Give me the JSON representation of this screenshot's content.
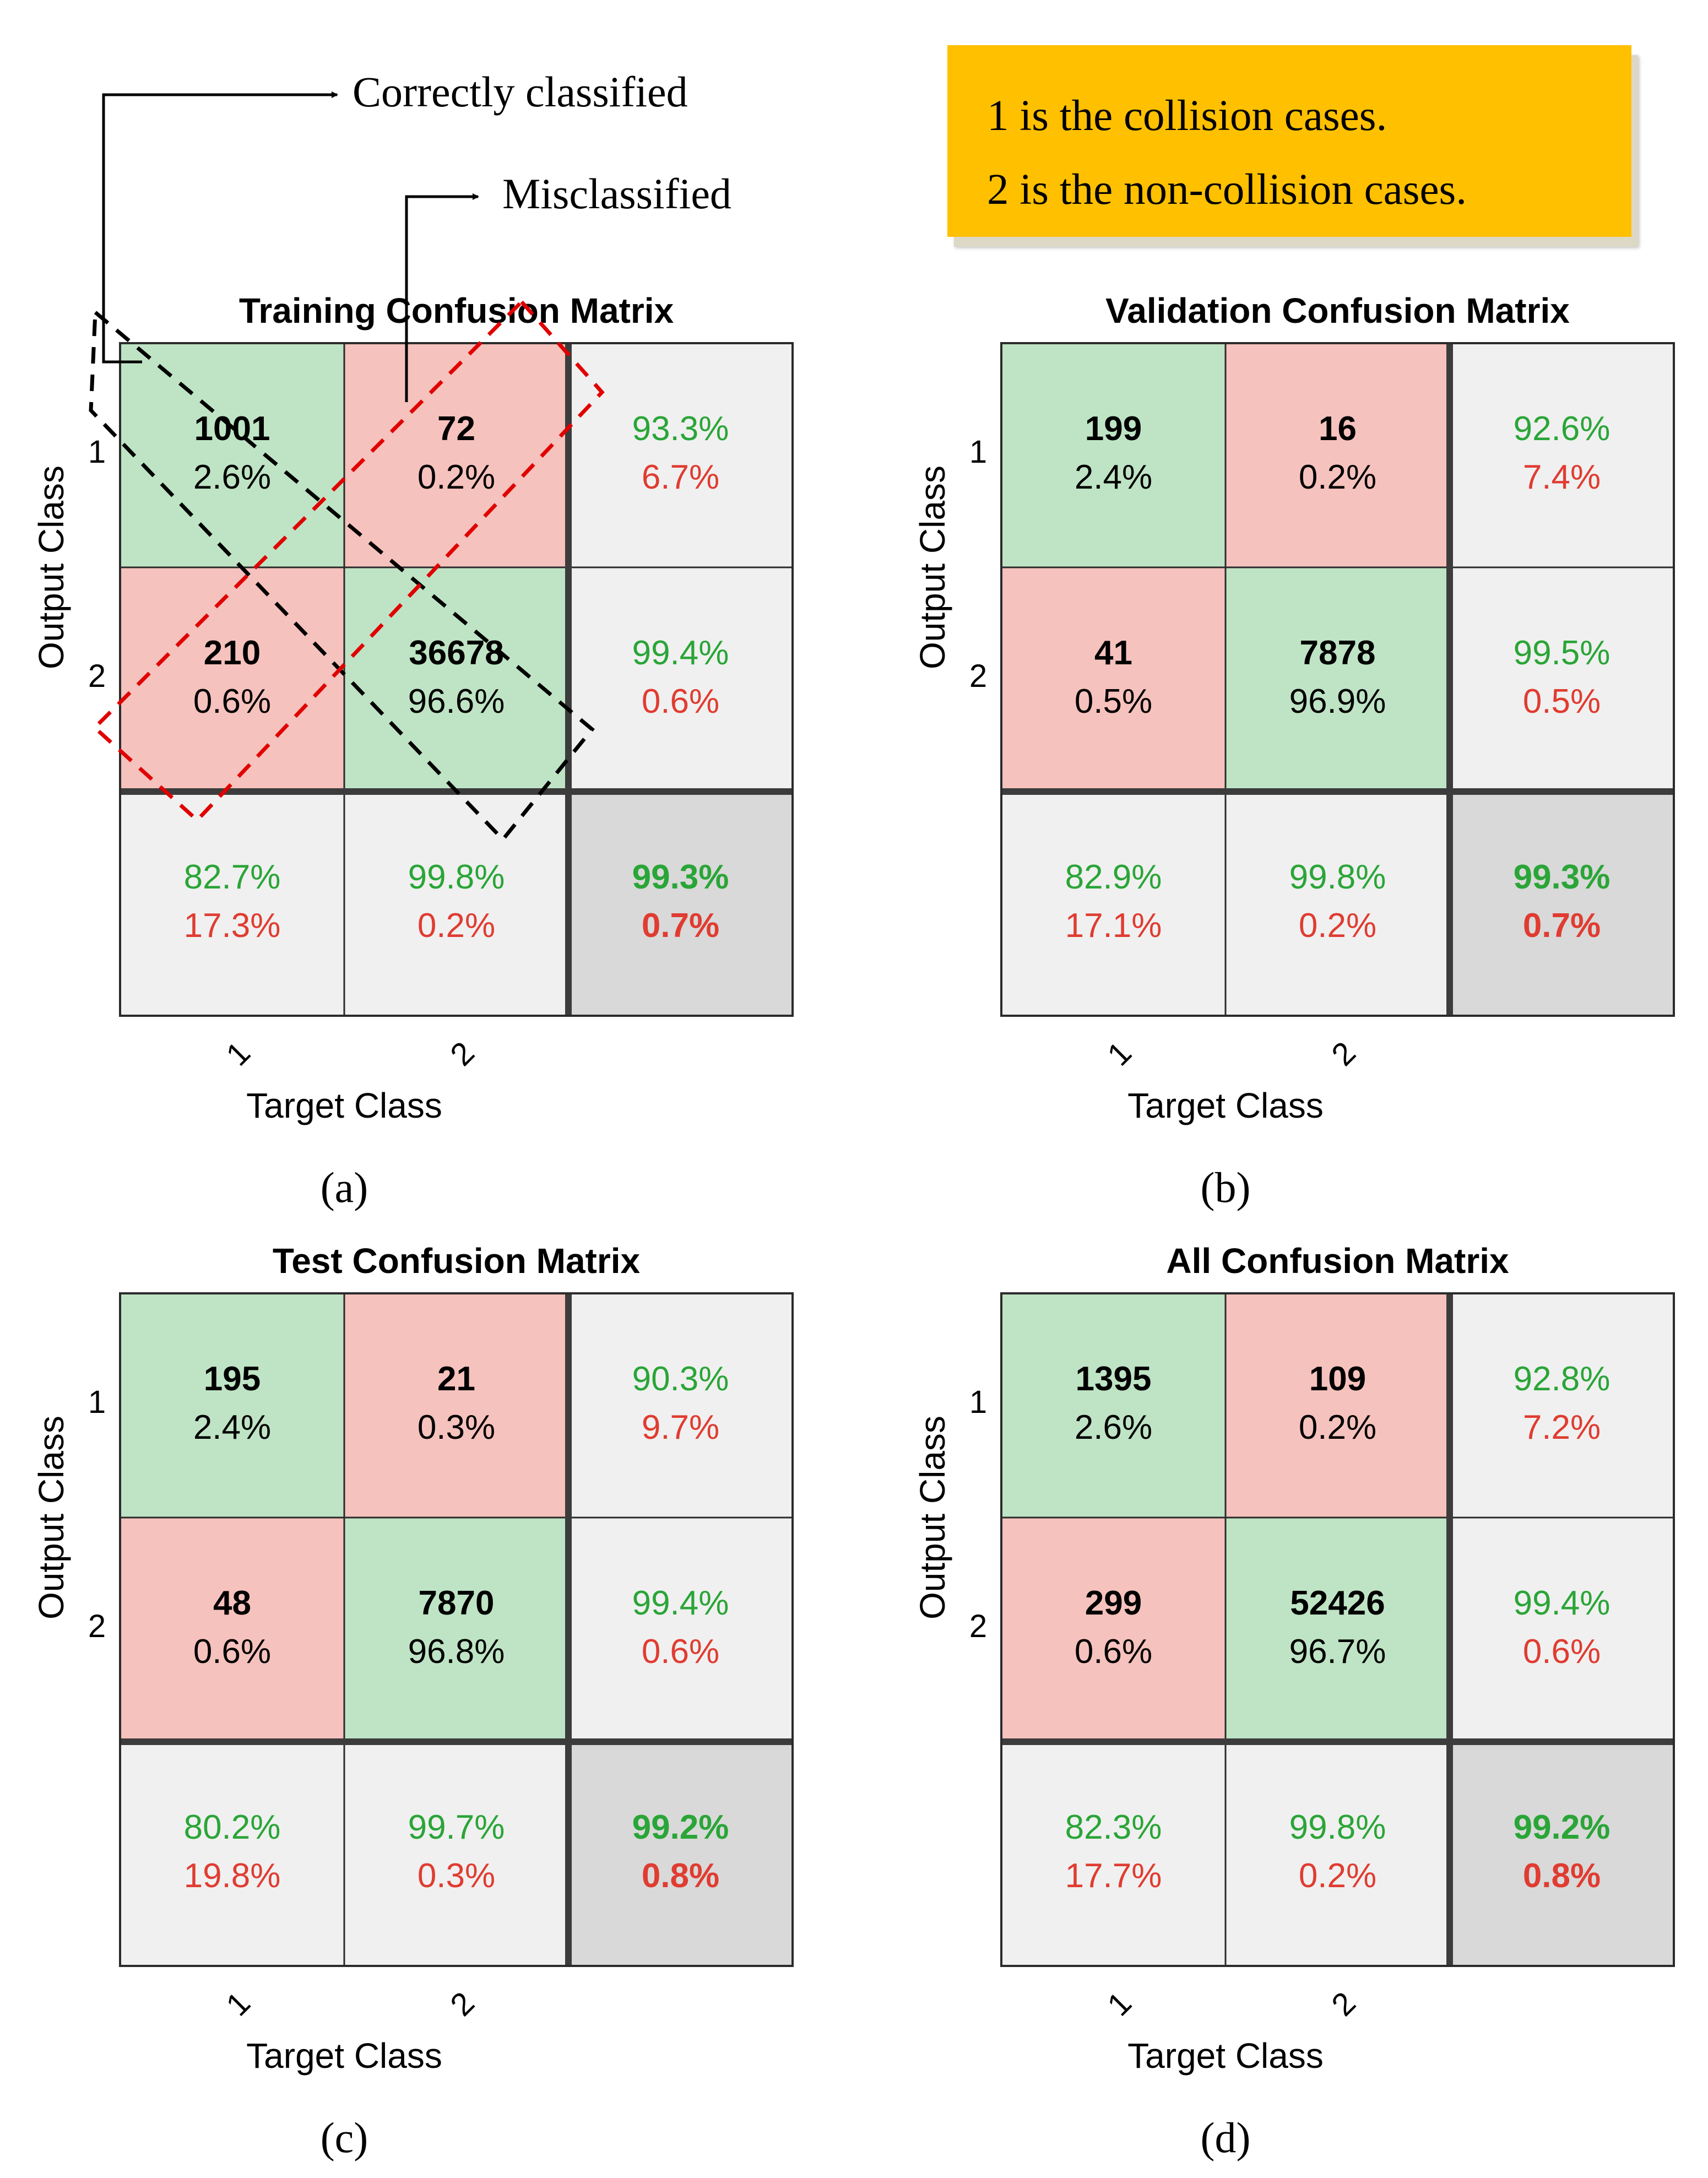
{
  "annotations": {
    "correct_label": "Correctly classified",
    "misclassified_label": "Misclassified",
    "note_lines": [
      "1 is the collision cases.",
      "2 is the non-collision cases."
    ]
  },
  "colors": {
    "correct_cell": "#bfe4c5",
    "wrong_cell": "#f6c2bd",
    "summary_cell": "#f0f0f0",
    "overall_cell": "#d9d9d9",
    "green_text": "#2aa537",
    "red_text": "#e03c31",
    "note_bg": "#ffc000",
    "correct_box": "#000000",
    "misclassified_box": "#e00000"
  },
  "chart_data": [
    {
      "type": "table",
      "panel_label": "(a)",
      "title": "Training Confusion Matrix",
      "xlabel": "Target Class",
      "ylabel": "Output Class",
      "class_labels": [
        "1",
        "2"
      ],
      "counts": [
        [
          "1001",
          "72"
        ],
        [
          "210",
          "36678"
        ]
      ],
      "percents": [
        [
          "2.6%",
          "0.2%"
        ],
        [
          "0.6%",
          "96.6%"
        ]
      ],
      "row_summary": [
        [
          "93.3%",
          "6.7%"
        ],
        [
          "99.4%",
          "0.6%"
        ]
      ],
      "col_summary": [
        [
          "82.7%",
          "17.3%"
        ],
        [
          "99.8%",
          "0.2%"
        ]
      ],
      "overall": [
        "99.3%",
        "0.7%"
      ]
    },
    {
      "type": "table",
      "panel_label": "(b)",
      "title": "Validation Confusion Matrix",
      "xlabel": "Target Class",
      "ylabel": "Output Class",
      "class_labels": [
        "1",
        "2"
      ],
      "counts": [
        [
          "199",
          "16"
        ],
        [
          "41",
          "7878"
        ]
      ],
      "percents": [
        [
          "2.4%",
          "0.2%"
        ],
        [
          "0.5%",
          "96.9%"
        ]
      ],
      "row_summary": [
        [
          "92.6%",
          "7.4%"
        ],
        [
          "99.5%",
          "0.5%"
        ]
      ],
      "col_summary": [
        [
          "82.9%",
          "17.1%"
        ],
        [
          "99.8%",
          "0.2%"
        ]
      ],
      "overall": [
        "99.3%",
        "0.7%"
      ]
    },
    {
      "type": "table",
      "panel_label": "(c)",
      "title": "Test Confusion Matrix",
      "xlabel": "Target Class",
      "ylabel": "Output Class",
      "class_labels": [
        "1",
        "2"
      ],
      "counts": [
        [
          "195",
          "21"
        ],
        [
          "48",
          "7870"
        ]
      ],
      "percents": [
        [
          "2.4%",
          "0.3%"
        ],
        [
          "0.6%",
          "96.8%"
        ]
      ],
      "row_summary": [
        [
          "90.3%",
          "9.7%"
        ],
        [
          "99.4%",
          "0.6%"
        ]
      ],
      "col_summary": [
        [
          "80.2%",
          "19.8%"
        ],
        [
          "99.7%",
          "0.3%"
        ]
      ],
      "overall": [
        "99.2%",
        "0.8%"
      ]
    },
    {
      "type": "table",
      "panel_label": "(d)",
      "title": "All Confusion Matrix",
      "xlabel": "Target Class",
      "ylabel": "Output Class",
      "class_labels": [
        "1",
        "2"
      ],
      "counts": [
        [
          "1395",
          "109"
        ],
        [
          "299",
          "52426"
        ]
      ],
      "percents": [
        [
          "2.6%",
          "0.2%"
        ],
        [
          "0.6%",
          "96.7%"
        ]
      ],
      "row_summary": [
        [
          "92.8%",
          "7.2%"
        ],
        [
          "99.4%",
          "0.6%"
        ]
      ],
      "col_summary": [
        [
          "82.3%",
          "17.7%"
        ],
        [
          "99.8%",
          "0.2%"
        ]
      ],
      "overall": [
        "99.2%",
        "0.8%"
      ]
    }
  ]
}
